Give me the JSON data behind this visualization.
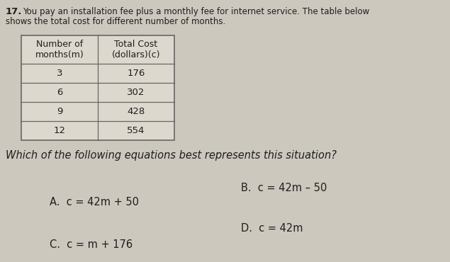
{
  "background_color": "#ccc8be",
  "question_number": "17.",
  "intro_text_line1": "You pay an installation fee plus a monthly fee for internet service. The table below",
  "intro_text_line2": "shows the total cost for different number of months.",
  "table_col1_header_line1": "Number of",
  "table_col1_header_line2": "months(m)",
  "table_col2_header_line1": "Total Cost",
  "table_col2_header_line2": "(dollars)(c)",
  "table_data": [
    [
      "3",
      "176"
    ],
    [
      "6",
      "302"
    ],
    [
      "9",
      "428"
    ],
    [
      "12",
      "554"
    ]
  ],
  "question_text": "Which of the following equations best represents this situation?",
  "option_A": "A.  c = 42m + 50",
  "option_B": "B.  c = 42m – 50",
  "option_C": "C.  c = m + 176",
  "option_D": "D.  c = 42m",
  "text_color": "#1e1e1e",
  "table_border_color": "#666666",
  "table_fill_color": "#ddd8ce",
  "font_size_intro": 8.5,
  "font_size_number": 9.5,
  "font_size_table_header": 9.0,
  "font_size_table_data": 9.5,
  "font_size_question": 10.5,
  "font_size_options": 10.5
}
